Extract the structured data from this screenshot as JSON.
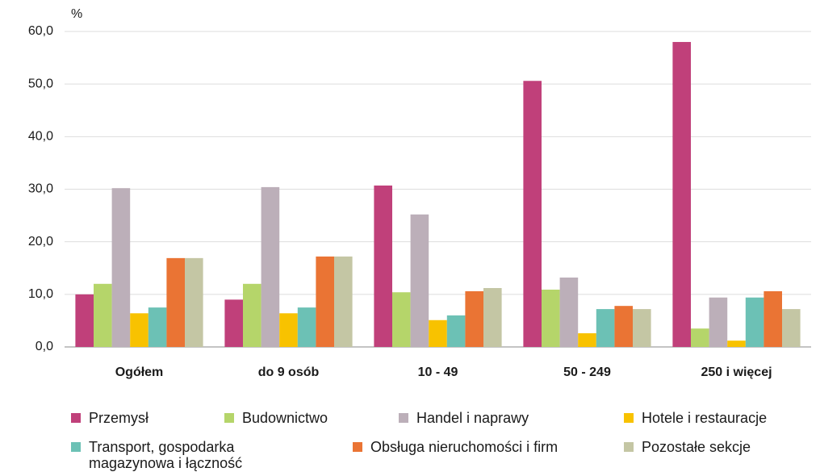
{
  "chart_data": {
    "type": "bar",
    "y_label": "%",
    "categories": [
      "Ogółem",
      "do 9 osób",
      "10 - 49",
      "50 - 249",
      "250 i więcej"
    ],
    "series": [
      {
        "name": "Przemysł",
        "color": "#c0407a",
        "values": [
          10.0,
          9.0,
          30.7,
          50.6,
          58.0
        ]
      },
      {
        "name": "Budownictwo",
        "color": "#b5d56a",
        "values": [
          12.0,
          12.0,
          10.4,
          10.9,
          3.5
        ]
      },
      {
        "name": "Handel i naprawy",
        "color": "#bcafb9",
        "values": [
          30.2,
          30.4,
          25.2,
          13.2,
          9.4
        ]
      },
      {
        "name": "Hotele i restauracje",
        "color": "#f8c200",
        "values": [
          6.4,
          6.4,
          5.1,
          2.6,
          1.2
        ]
      },
      {
        "name": "Transport, gospodarka magazynowa i łączność",
        "color": "#6cc1b5",
        "values": [
          7.5,
          7.5,
          6.0,
          7.2,
          9.4
        ]
      },
      {
        "name": "Obsługa nieruchomości i firm",
        "color": "#ea7434",
        "values": [
          16.9,
          17.2,
          10.6,
          7.8,
          10.6
        ]
      },
      {
        "name": "Pozostałe sekcje",
        "color": "#c4c6a4",
        "values": [
          16.9,
          17.2,
          11.2,
          7.2,
          7.2
        ]
      }
    ],
    "ylim": [
      0,
      60
    ],
    "yticks": [
      {
        "value": 0,
        "label": "0,0"
      },
      {
        "value": 10,
        "label": "10,0"
      },
      {
        "value": 20,
        "label": "20,0"
      },
      {
        "value": 30,
        "label": "30,0"
      },
      {
        "value": 40,
        "label": "40,0"
      },
      {
        "value": 50,
        "label": "50,0"
      },
      {
        "value": 60,
        "label": "60,0"
      }
    ],
    "grid": true
  }
}
